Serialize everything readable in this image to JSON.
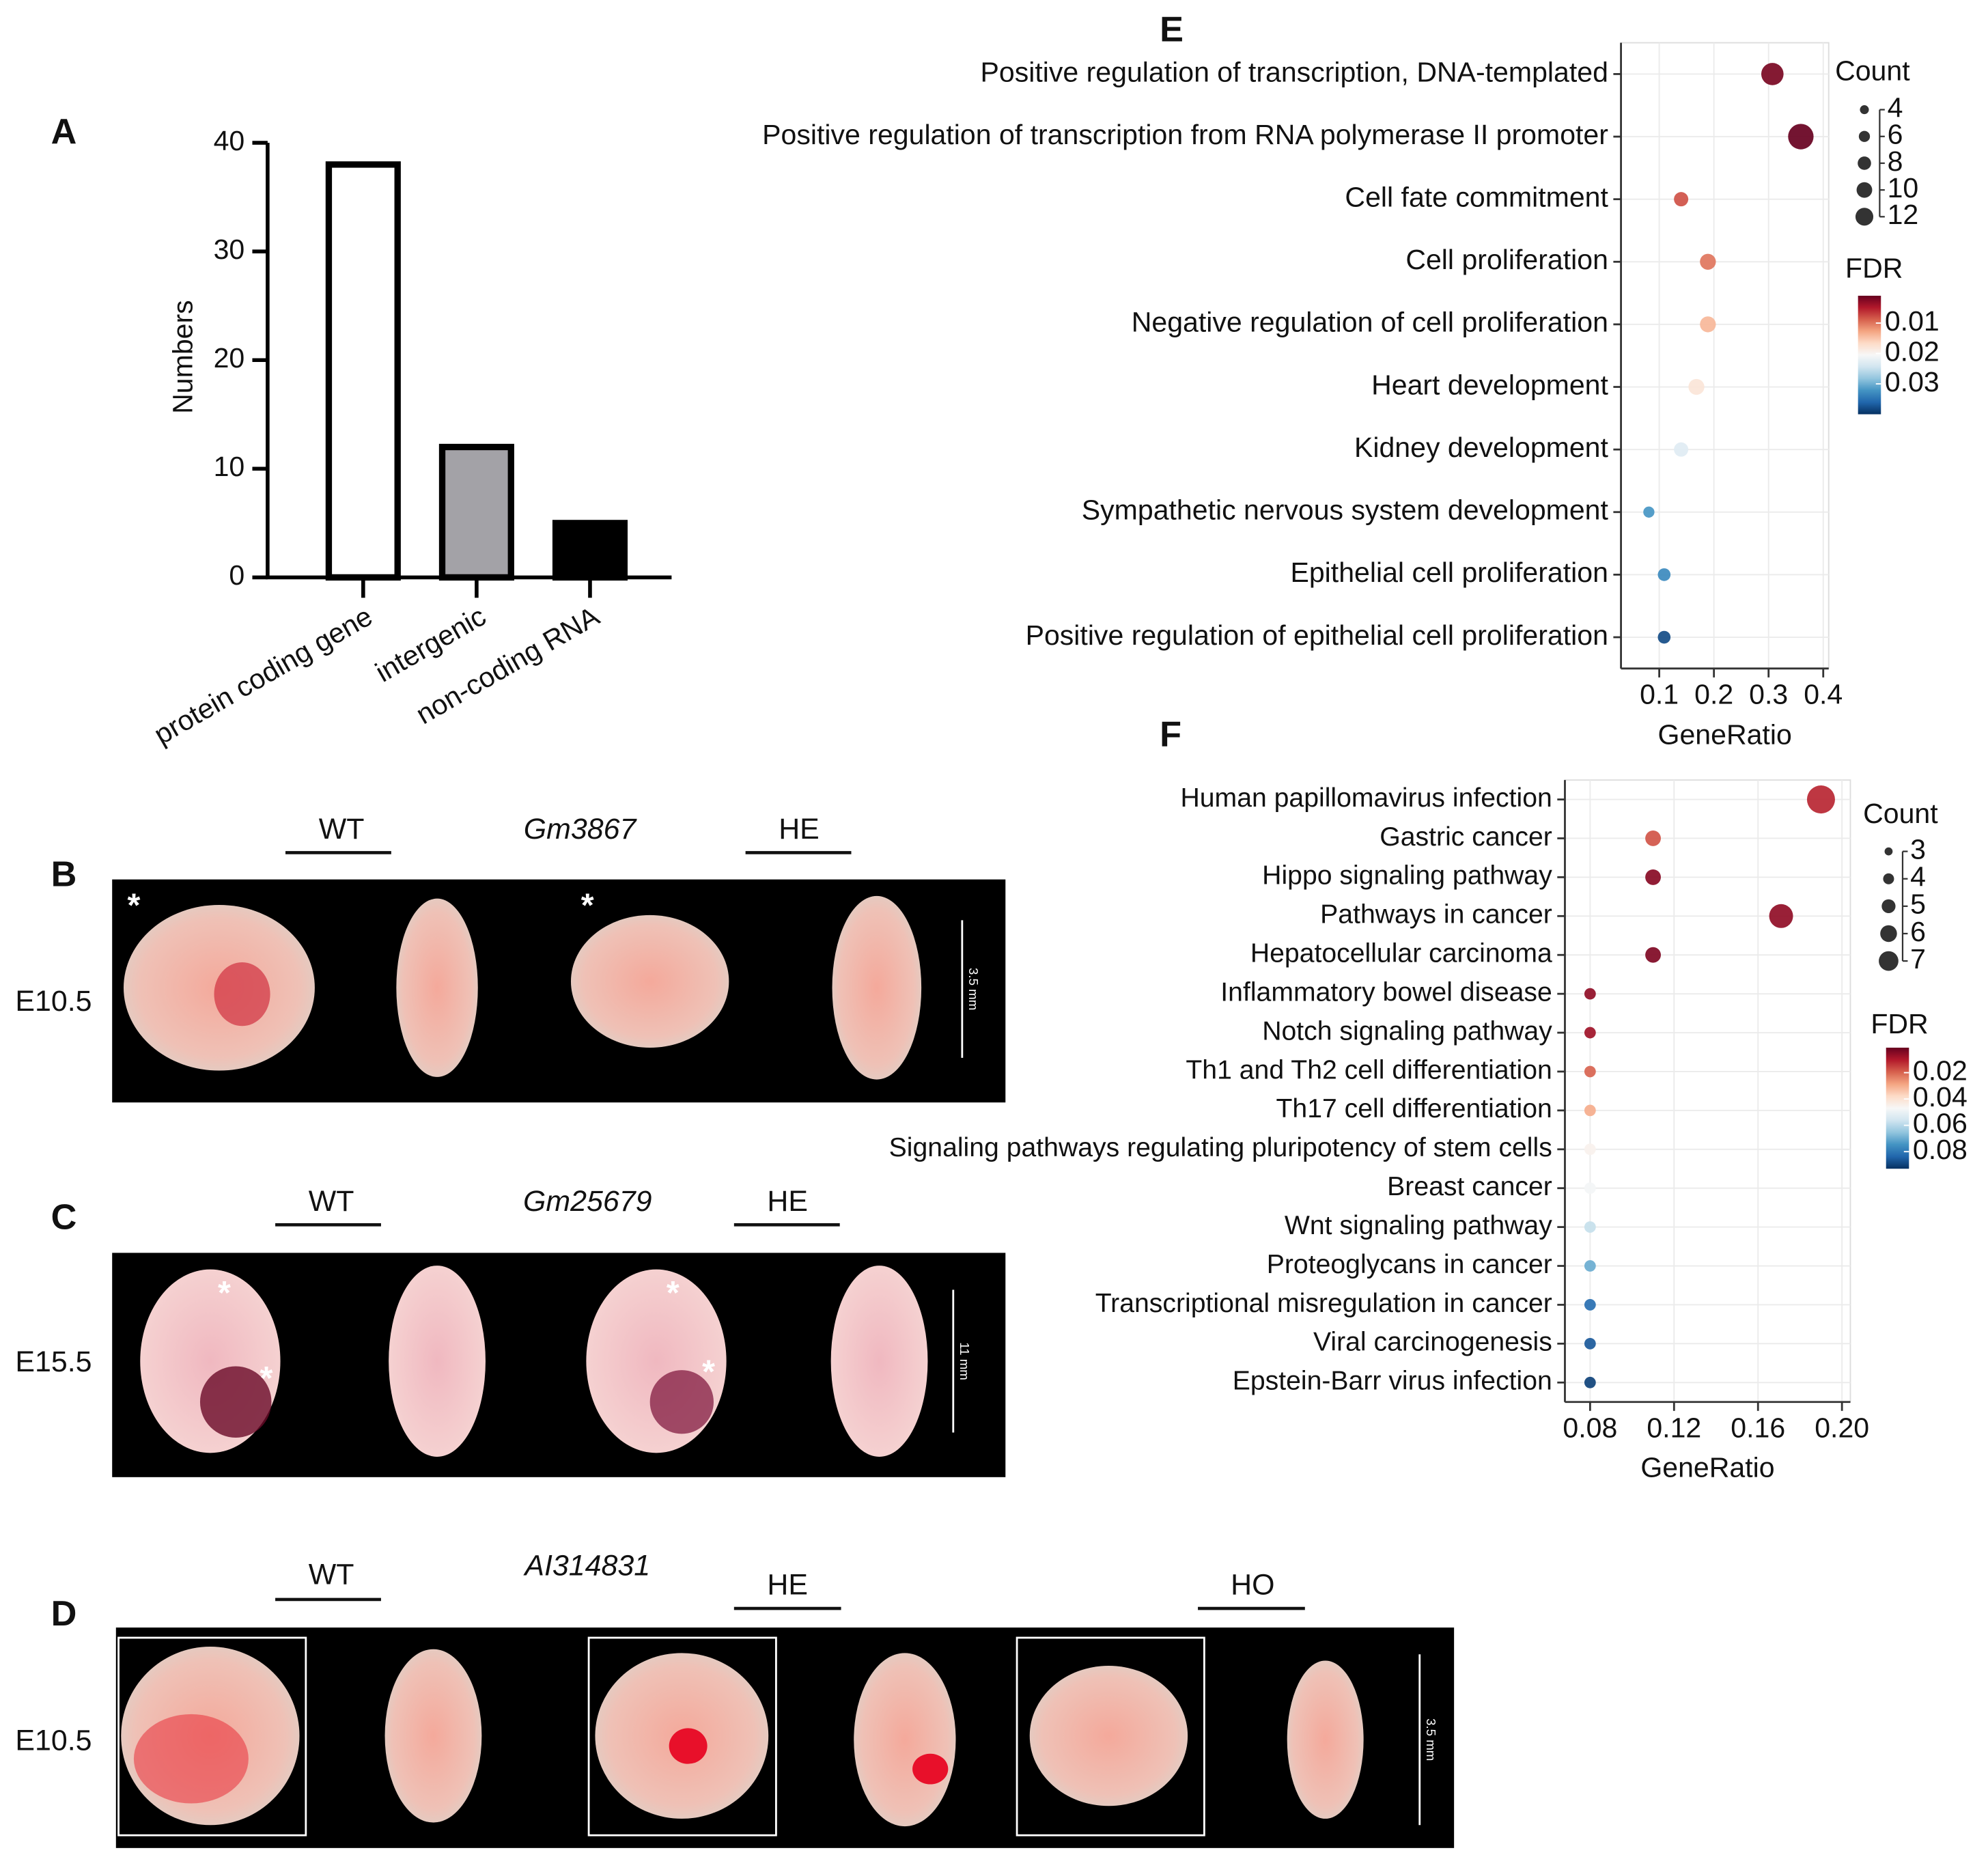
{
  "chart_data": [
    {
      "type": "bar",
      "panel": "A",
      "ylabel": "Numbers",
      "categories": [
        "protein coding gene",
        "intergenic",
        "non-coding RNA"
      ],
      "values": [
        38,
        12,
        5
      ],
      "colors": [
        "#ffffff",
        "#a3a2a7",
        "#000000"
      ],
      "ylim": [
        0,
        40
      ],
      "yticks": [
        0,
        10,
        20,
        30,
        40
      ]
    },
    {
      "type": "dot",
      "panel": "E",
      "xlabel": "GeneRatio",
      "categories": [
        "Positive regulation of transcription, DNA-templated",
        "Positive regulation of transcription from RNA polymerase II promoter",
        "Cell fate commitment",
        "Cell proliferation",
        "Negative regulation of cell proliferation",
        "Heart development",
        "Kidney development",
        "Sympathetic nervous system development",
        "Epithelial cell proliferation",
        "Positive regulation of epithelial cell proliferation"
      ],
      "values": [
        0.307,
        0.359,
        0.14,
        0.189,
        0.189,
        0.168,
        0.14,
        0.081,
        0.109,
        0.109
      ],
      "counts": [
        10,
        12,
        5,
        6,
        6,
        6,
        5,
        3,
        4,
        4
      ],
      "fdr": [
        0.002,
        0.001,
        0.008,
        0.01,
        0.014,
        0.018,
        0.023,
        0.032,
        0.033,
        0.038
      ],
      "xlim": [
        0.03,
        0.41
      ],
      "xticks": [
        0.1,
        0.2,
        0.3,
        0.4
      ],
      "grid": true,
      "size_title": "Count",
      "size_ticks": [
        4,
        6,
        8,
        10,
        12
      ],
      "color_title": "FDR",
      "clim": [
        0.001,
        0.04
      ],
      "color_ticks": [
        0.01,
        0.02,
        0.03
      ],
      "colormap": [
        "#67001f",
        "#b2182b",
        "#d6604d",
        "#f4a582",
        "#fddbc7",
        "#f7f7f7",
        "#d1e5f0",
        "#92c5de",
        "#4393c3",
        "#2166ac",
        "#053061"
      ]
    },
    {
      "type": "dot",
      "panel": "F",
      "xlabel": "GeneRatio",
      "categories": [
        "Human papillomavirus infection",
        "Gastric cancer",
        "Hippo signaling pathway",
        "Pathways in cancer",
        "Hepatocellular carcinoma",
        "Inflammatory bowel disease",
        "Notch signaling pathway",
        "Th1 and Th2 cell differentiation",
        "Th17 cell differentiation",
        "Signaling pathways regulating pluripotency of stem cells",
        "Breast cancer",
        "Wnt signaling pathway",
        "Proteoglycans in cancer",
        "Transcriptional misregulation in cancer",
        "Viral carcinogenesis",
        "Epstein-Barr virus infection"
      ],
      "values": [
        0.19,
        0.11,
        0.11,
        0.171,
        0.11,
        0.08,
        0.08,
        0.08,
        0.08,
        0.08,
        0.08,
        0.08,
        0.08,
        0.08,
        0.08,
        0.08
      ],
      "counts": [
        7,
        4,
        4,
        6,
        4,
        3,
        3,
        3,
        3,
        3,
        3,
        3,
        3,
        3,
        3,
        3
      ],
      "fdr": [
        0.012,
        0.018,
        0.005,
        0.006,
        0.004,
        0.006,
        0.008,
        0.02,
        0.03,
        0.045,
        0.048,
        0.058,
        0.07,
        0.082,
        0.086,
        0.09
      ],
      "xlim": [
        0.068,
        0.204
      ],
      "xticks": [
        0.08,
        0.12,
        0.16,
        {
          "value": 0.2,
          "label": "0.20"
        }
      ],
      "grid": true,
      "size_title": "Count",
      "size_ticks": [
        3,
        4,
        5,
        6,
        7
      ],
      "color_title": "FDR",
      "clim": [
        0.001,
        0.093
      ],
      "color_ticks": [
        0.02,
        0.04,
        0.06,
        0.08
      ],
      "colormap": [
        "#67001f",
        "#b2182b",
        "#d6604d",
        "#f4a582",
        "#fddbc7",
        "#f7f7f7",
        "#d1e5f0",
        "#92c5de",
        "#4393c3",
        "#2166ac",
        "#053061"
      ]
    }
  ],
  "photo_panels": [
    {
      "label": "B",
      "stage": "E10.5",
      "gene": "Gm3867",
      "groups": [
        "WT",
        "HE"
      ],
      "scale_bar": "3.5 mm",
      "asterisks": [
        "*",
        "*"
      ]
    },
    {
      "label": "C",
      "stage": "E15.5",
      "gene": "Gm25679",
      "groups": [
        "WT",
        "HE"
      ],
      "scale_bar": "11 mm",
      "asterisks": [
        "*",
        "*",
        "*",
        "*"
      ]
    },
    {
      "label": "D",
      "stage": "E10.5",
      "gene": "AI314831",
      "groups": [
        "WT",
        "HE",
        "HO"
      ],
      "scale_bar": "3.5 mm"
    }
  ]
}
